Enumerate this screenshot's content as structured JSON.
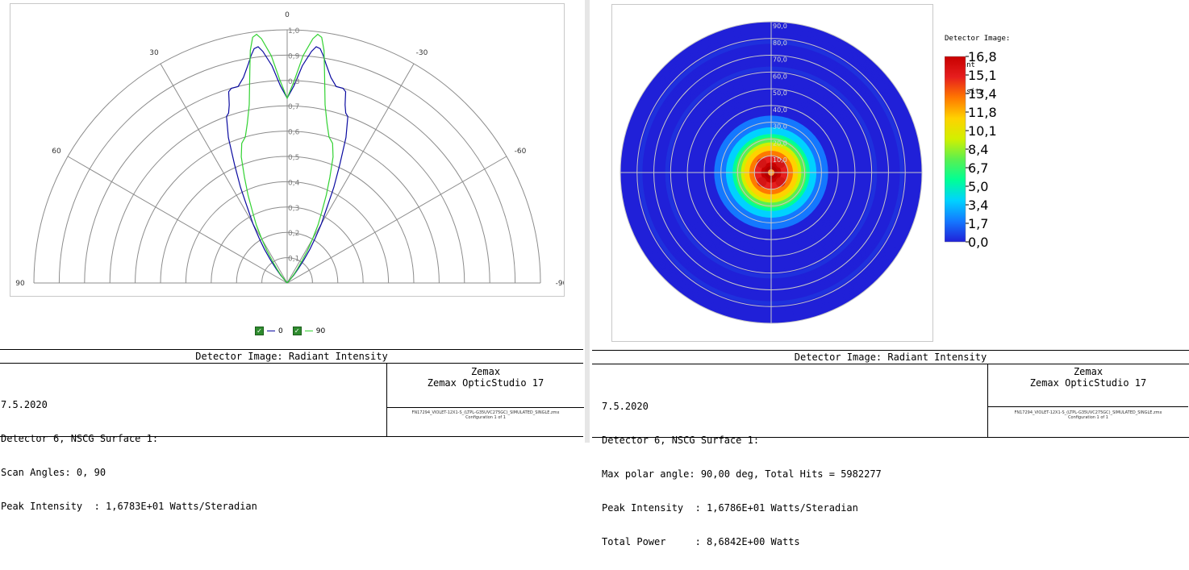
{
  "left": {
    "top_label": "0",
    "angle_labels": [
      "30",
      "-30",
      "60",
      "-60",
      "90",
      "-90"
    ],
    "radial_labels": [
      "0,1",
      "0,2",
      "0,3",
      "0,4",
      "0,5",
      "0,6",
      "0,7",
      "0,8",
      "0,9",
      "1,0"
    ],
    "legend": [
      {
        "label": "0",
        "color": "#0a0aa0"
      },
      {
        "label": "90",
        "color": "#32d232"
      }
    ],
    "title": "Detector Image: Radiant Intensity",
    "info_lines": [
      "7.5.2020",
      "Detector 6, NSCG Surface 1:",
      "Scan Angles: 0, 90",
      "Peak Intensity  : 1,6783E+01 Watts/Steradian"
    ],
    "brand_line1": "Zemax",
    "brand_line2": "Zemax OpticStudio 17",
    "file_name": "FN17294_VIOLET-12X1-S_(LTPL-G35UVC275GC)_SIMULATED_SINGLE.zmx",
    "configuration": "Configuration 1 of 1"
  },
  "right": {
    "legend_title": [
      "Detector Image:",
      "Radiant",
      "Intensity"
    ],
    "colorbar_ticks": [
      "16,8",
      "15,1",
      "13,4",
      "11,8",
      "10,1",
      "8,4",
      "6,7",
      "5,0",
      "3,4",
      "1,7",
      "0,0"
    ],
    "ring_labels": [
      "10,0",
      "20,0",
      "30,0",
      "40,0",
      "50,0",
      "60,0",
      "70,0",
      "80,0",
      "90,0"
    ],
    "title": "Detector Image: Radiant Intensity",
    "info_lines": [
      "7.5.2020",
      "Detector 6, NSCG Surface 1:",
      "Max polar angle: 90,00 deg, Total Hits = 5982277",
      "Peak Intensity  : 1,6786E+01 Watts/Steradian",
      "Total Power     : 8,6842E+00 Watts"
    ],
    "brand_line1": "Zemax",
    "brand_line2": "Zemax OpticStudio 17",
    "file_name": "FN17294_VIOLET-12X1-S_(LTPL-G35UVC275GC)_SIMULATED_SINGLE.zmx",
    "configuration": "Configuration 1 of 1"
  },
  "chart_data": [
    {
      "type": "line",
      "subtype": "polar",
      "angle_range": [
        -90,
        90
      ],
      "r_range": [
        0,
        1
      ],
      "grid": true,
      "series": [
        {
          "name": "0",
          "color": "#0a0aa0",
          "angles": [
            0,
            2,
            4,
            6,
            7,
            8,
            9,
            10,
            12,
            14,
            16,
            17,
            18,
            19,
            20,
            22,
            24,
            26,
            28,
            30,
            32,
            34,
            36,
            38,
            40,
            45
          ],
          "r": [
            0.73,
            0.78,
            0.86,
            0.92,
            0.94,
            0.935,
            0.91,
            0.88,
            0.83,
            0.8,
            0.8,
            0.79,
            0.74,
            0.71,
            0.7,
            0.62,
            0.51,
            0.42,
            0.33,
            0.27,
            0.21,
            0.16,
            0.11,
            0.07,
            0.04,
            0.0
          ]
        },
        {
          "name": "90",
          "color": "#32d232",
          "angles": [
            0,
            2,
            4,
            6,
            7,
            8,
            9,
            10,
            12,
            14,
            16,
            18,
            20,
            22,
            24,
            26,
            28,
            30,
            32,
            34,
            36,
            38,
            40,
            45
          ],
          "r": [
            0.73,
            0.8,
            0.9,
            0.97,
            0.99,
            0.98,
            0.93,
            0.85,
            0.72,
            0.65,
            0.6,
            0.58,
            0.53,
            0.45,
            0.38,
            0.31,
            0.26,
            0.2,
            0.15,
            0.1,
            0.07,
            0.045,
            0.025,
            0.0
          ]
        }
      ]
    },
    {
      "type": "heatmap",
      "subtype": "polar",
      "r_range": [
        0,
        90
      ],
      "unit": "deg",
      "colorbar_range": [
        0,
        16.8
      ],
      "colormap": [
        "#2020d8",
        "#1478ff",
        "#00d2ff",
        "#00ff96",
        "#5af050",
        "#d2f000",
        "#ffd200",
        "#ff7800",
        "#e61e1e",
        "#c80000"
      ],
      "profile": {
        "polar_angle": [
          0,
          3,
          5,
          8,
          12,
          16,
          20,
          24,
          28,
          32,
          40,
          60,
          90
        ],
        "intensity": [
          15.5,
          16.5,
          15.8,
          14.5,
          12.5,
          10.2,
          7.5,
          5.0,
          3.2,
          2.0,
          0.9,
          0.3,
          0.0
        ]
      },
      "hotspots": [
        {
          "polar_angle": 6,
          "azimuth": 45,
          "intensity": 16.8
        },
        {
          "polar_angle": 6,
          "azimuth": 135,
          "intensity": 16.8
        },
        {
          "polar_angle": 6,
          "azimuth": 225,
          "intensity": 16.8
        },
        {
          "polar_angle": 6,
          "azimuth": 315,
          "intensity": 16.8
        }
      ]
    }
  ]
}
